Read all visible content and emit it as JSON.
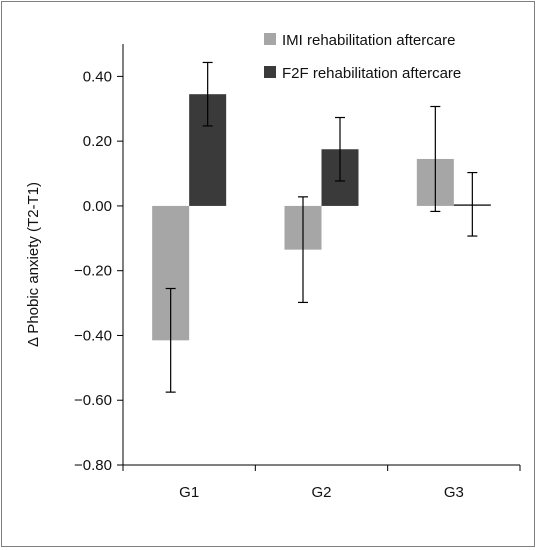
{
  "chart_data": {
    "type": "bar",
    "title": "",
    "xlabel": "",
    "ylabel": "Δ Phobic anxiety (T2-T1)",
    "categories": [
      "G1",
      "G2",
      "G3"
    ],
    "series": [
      {
        "name": "IMI rehabilitation aftercare",
        "color": "#a6a6a6",
        "values": [
          -0.415,
          -0.135,
          0.145
        ],
        "errors": [
          0.16,
          0.163,
          0.162
        ]
      },
      {
        "name": "F2F rehabilitation aftercare",
        "color": "#3a3a3a",
        "values": [
          0.345,
          0.175,
          0.005
        ],
        "errors": [
          0.098,
          0.098,
          0.098
        ]
      }
    ],
    "ylim": [
      -0.8,
      0.5
    ],
    "yticks": [
      -0.8,
      -0.6,
      -0.4,
      -0.2,
      0.0,
      0.2,
      0.4
    ],
    "ytick_labels": [
      "−0.80",
      "−0.60",
      "−0.40",
      "−0.20",
      "0.00",
      "0.20",
      "0.40"
    ],
    "grid": false,
    "legend_position": "top-right"
  }
}
